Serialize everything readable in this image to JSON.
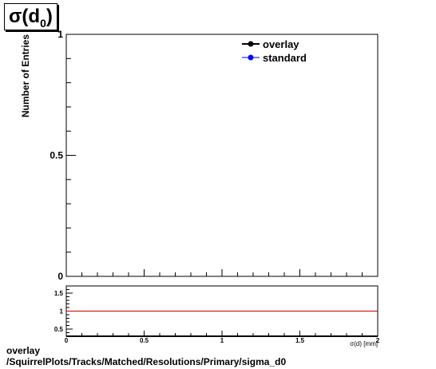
{
  "title": {
    "symbol": "σ(d",
    "subscript": "0",
    "close": ")"
  },
  "chart_data": [
    {
      "type": "line",
      "xlabel": "σ(d_{0}) [mm]",
      "ylabel": "Number of Entries",
      "xlim": [
        0,
        2
      ],
      "ylim": [
        0,
        1
      ],
      "x_ticks": [
        "0",
        "0.5",
        "1",
        "1.5",
        "2"
      ],
      "y_ticks": [
        "0",
        "0.5",
        "1"
      ],
      "grid": false,
      "legend_position": "top-right",
      "series": [
        {
          "name": "overlay",
          "color": "#000000",
          "values": []
        },
        {
          "name": "standard",
          "color": "#0000ff",
          "values": []
        }
      ]
    },
    {
      "type": "line",
      "xlim": [
        0,
        2
      ],
      "ylim": [
        0.3,
        1.7
      ],
      "x_ticks": [
        "0",
        "0.5",
        "1",
        "1.5",
        "2"
      ],
      "y_ticks": [
        "0.5",
        "1",
        "1.5"
      ],
      "reference_line": {
        "y": 1,
        "color": "#cc0000"
      },
      "series": []
    }
  ],
  "footer": {
    "line1": "overlay",
    "line2": "/SquirrelPlots/Tracks/Matched/Resolutions/Primary/sigma_d0"
  }
}
